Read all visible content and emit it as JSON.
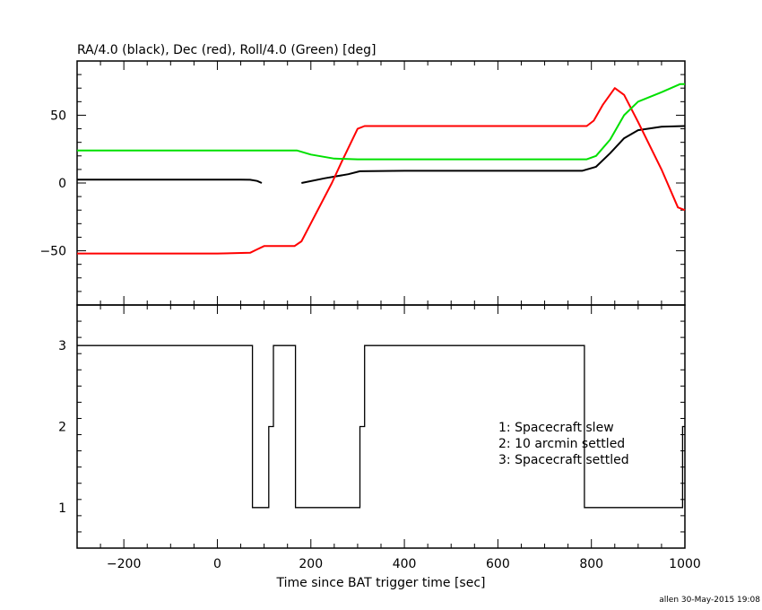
{
  "footer": "allen 30-May-2015 19:08",
  "chart_data": [
    {
      "type": "line",
      "title": "RA/4.0 (black), Dec (red), Roll/4.0 (Green) [deg]",
      "xlim": [
        -300,
        1000
      ],
      "ylim": [
        -90,
        90
      ],
      "y_ticks": [
        -50,
        0,
        50
      ],
      "y_tick_labels": [
        "−50",
        "0",
        "50"
      ],
      "grid": false,
      "series": [
        {
          "color": "#000000",
          "segments": [
            [
              [
                -300,
                2.5
              ],
              [
                -100,
                2.5
              ],
              [
                50,
                2.5
              ],
              [
                70,
                2.4
              ],
              [
                85,
                1.5
              ],
              [
                95,
                0
              ]
            ],
            [
              [
                180,
                0
              ],
              [
                230,
                3.5
              ],
              [
                280,
                6.5
              ],
              [
                305,
                8.7
              ],
              [
                400,
                9
              ],
              [
                600,
                9
              ],
              [
                780,
                9
              ],
              [
                810,
                12
              ],
              [
                840,
                22
              ],
              [
                870,
                33
              ],
              [
                900,
                39
              ],
              [
                950,
                41.5
              ],
              [
                1000,
                42
              ]
            ]
          ]
        },
        {
          "color": "#ff0000",
          "segments": [
            [
              [
                -300,
                -52
              ],
              [
                0,
                -52
              ],
              [
                70,
                -51.5
              ],
              [
                85,
                -49
              ],
              [
                100,
                -46.5
              ],
              [
                165,
                -46.5
              ],
              [
                180,
                -43
              ],
              [
                245,
                0
              ],
              [
                265,
                15
              ],
              [
                300,
                40
              ],
              [
                315,
                42
              ],
              [
                400,
                42
              ],
              [
                600,
                42
              ],
              [
                790,
                42
              ],
              [
                805,
                46
              ],
              [
                825,
                58
              ],
              [
                850,
                70
              ],
              [
                870,
                65
              ],
              [
                900,
                45
              ],
              [
                950,
                10
              ],
              [
                985,
                -18
              ],
              [
                1000,
                -20
              ]
            ]
          ]
        },
        {
          "color": "#00e000",
          "segments": [
            [
              [
                -300,
                24
              ],
              [
                0,
                24
              ],
              [
                170,
                24
              ],
              [
                200,
                21
              ],
              [
                250,
                18
              ],
              [
                300,
                17.5
              ],
              [
                400,
                17.5
              ],
              [
                600,
                17.5
              ],
              [
                790,
                17.5
              ],
              [
                810,
                20
              ],
              [
                840,
                32
              ],
              [
                870,
                50
              ],
              [
                900,
                60
              ],
              [
                950,
                67
              ],
              [
                990,
                73
              ],
              [
                1000,
                73
              ]
            ]
          ]
        }
      ]
    },
    {
      "type": "line",
      "step": true,
      "xlabel": "Time since BAT trigger time [sec]",
      "xlim": [
        -300,
        1000
      ],
      "ylim": [
        0.5,
        3.5
      ],
      "x_ticks": [
        -200,
        0,
        200,
        400,
        600,
        800,
        1000
      ],
      "x_tick_labels": [
        "−200",
        "0",
        "200",
        "400",
        "600",
        "800",
        "1000"
      ],
      "y_ticks": [
        1,
        2,
        3
      ],
      "y_tick_labels": [
        "1",
        "2",
        "3"
      ],
      "grid": false,
      "annotations": [
        "1: Spacecraft slew",
        "2: 10 arcmin settled",
        "3: Spacecraft settled"
      ],
      "series": [
        {
          "color": "#000000",
          "x": [
            -300,
            75,
            75,
            110,
            110,
            120,
            120,
            167,
            167,
            305,
            305,
            315,
            315,
            785,
            785,
            995,
            995,
            1000
          ],
          "values": [
            3,
            3,
            1,
            1,
            2,
            2,
            3,
            3,
            1,
            1,
            2,
            2,
            3,
            3,
            1,
            1,
            2,
            2
          ]
        }
      ]
    }
  ]
}
